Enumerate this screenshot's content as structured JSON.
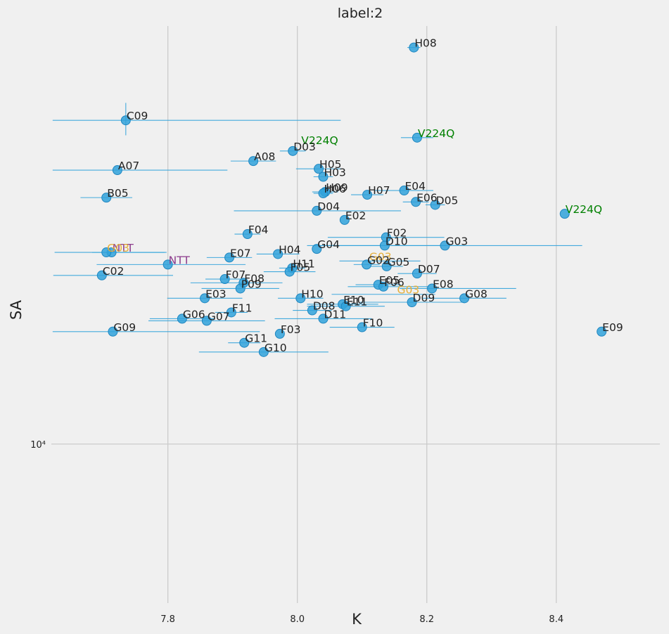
{
  "chart_data": {
    "type": "scatter",
    "title": "label:2",
    "xlabel": "K",
    "ylabel": "SA",
    "xlim": [
      7.62,
      8.56
    ],
    "ylim": [
      6030,
      37800
    ],
    "yscale": "log",
    "grid": true,
    "colors": {
      "marker": "#30a2da",
      "default_label": "#222222",
      "V224Q": "#008000",
      "G03": "#e5ae38",
      "NTT": "#8b3a8b"
    },
    "x_ticks": [
      {
        "value": 7.8,
        "label": "7.8"
      },
      {
        "value": 8.0,
        "label": "8.0"
      },
      {
        "value": 8.2,
        "label": "8.2"
      },
      {
        "value": 8.4,
        "label": "8.4"
      }
    ],
    "y_ticks": [
      {
        "value": 10000,
        "label": "10⁴"
      }
    ],
    "points": [
      {
        "label": "H08",
        "x": 8.18,
        "y": 35300,
        "xerr": 0.01
      },
      {
        "label": "C09",
        "x": 7.735,
        "y": 28000,
        "xerr": [
          0.113,
          0.332
        ],
        "yerr": [
          1300,
          1600
        ]
      },
      {
        "label": "V224Q",
        "x": 8.185,
        "y": 26500,
        "xerr": 0.025,
        "color": "V224Q"
      },
      {
        "label": "V224Q",
        "x": 8.005,
        "y": 25900,
        "xerr": 0.0,
        "color": "V224Q",
        "marker": false
      },
      {
        "label": "D03",
        "x": 7.993,
        "y": 25400,
        "xerr": 0.02
      },
      {
        "label": "A08",
        "x": 7.932,
        "y": 24600,
        "xerr": 0.035
      },
      {
        "label": "H05",
        "x": 8.033,
        "y": 24000,
        "xerr": 0.035
      },
      {
        "label": "A07",
        "x": 7.722,
        "y": 23900,
        "xerr": [
          0.1,
          0.17
        ]
      },
      {
        "label": "H03",
        "x": 8.04,
        "y": 23400,
        "xerr": 0.015
      },
      {
        "label": "E04",
        "x": 8.165,
        "y": 22400,
        "xerr": 0.045
      },
      {
        "label": "H09",
        "x": 8.043,
        "y": 22300,
        "xerr": 0.02
      },
      {
        "label": "H07",
        "x": 8.108,
        "y": 22100,
        "xerr": 0.025
      },
      {
        "label": "H06",
        "x": 8.04,
        "y": 22200,
        "xerr": 0.015
      },
      {
        "label": "B05",
        "x": 7.705,
        "y": 21900,
        "xerr": 0.04
      },
      {
        "label": "E06",
        "x": 8.183,
        "y": 21600,
        "xerr": 0.02
      },
      {
        "label": "D05",
        "x": 8.213,
        "y": 21400,
        "xerr": 0.015
      },
      {
        "label": "D04",
        "x": 8.03,
        "y": 21000,
        "xerr": [
          0.128,
          0.13
        ]
      },
      {
        "label": "V224Q",
        "x": 8.413,
        "y": 20800,
        "xerr": 0.0,
        "color": "V224Q"
      },
      {
        "label": "E02",
        "x": 8.073,
        "y": 20400,
        "xerr": 0.0
      },
      {
        "label": "F04",
        "x": 7.923,
        "y": 19500,
        "xerr": 0.02
      },
      {
        "label": "F02",
        "x": 8.137,
        "y": 19300,
        "xerr": 0.09
      },
      {
        "label": "D10",
        "x": 8.135,
        "y": 18800,
        "xerr": 0.12
      },
      {
        "label": "G03",
        "x": 8.228,
        "y": 18800,
        "xerr": [
          0.19,
          0.212
        ]
      },
      {
        "label": "G04",
        "x": 8.03,
        "y": 18600,
        "xerr": 0.0
      },
      {
        "label": "NTT",
        "x": 7.713,
        "y": 18400,
        "xerr": [
          0.03,
          0.085
        ],
        "color": "NTT"
      },
      {
        "label": "G03",
        "x": 7.705,
        "y": 18400,
        "xerr": [
          0.08,
          0.09
        ],
        "color": "G03"
      },
      {
        "label": "H04",
        "x": 7.97,
        "y": 18300,
        "xerr": 0.033
      },
      {
        "label": "E07",
        "x": 7.895,
        "y": 18100,
        "xerr": 0.035
      },
      {
        "label": "G03",
        "x": 8.11,
        "y": 17900,
        "xerr": [
          0.045,
          0.08
        ],
        "color": "G03",
        "marker": false
      },
      {
        "label": "G02",
        "x": 8.107,
        "y": 17700,
        "xerr": 0.02
      },
      {
        "label": "NTT",
        "x": 7.8,
        "y": 17700,
        "xerr": [
          0.11,
          0.12
        ],
        "color": "NTT"
      },
      {
        "label": "G05",
        "x": 8.138,
        "y": 17600,
        "xerr": 0.025
      },
      {
        "label": "H11",
        "x": 7.992,
        "y": 17500,
        "xerr": 0.02
      },
      {
        "label": "F05",
        "x": 7.988,
        "y": 17300,
        "xerr": 0.04
      },
      {
        "label": "D07",
        "x": 8.185,
        "y": 17200,
        "xerr": 0.03
      },
      {
        "label": "C02",
        "x": 7.698,
        "y": 17100,
        "xerr": [
          0.075,
          0.11
        ]
      },
      {
        "label": "F07",
        "x": 7.888,
        "y": 16900,
        "xerr": 0.03
      },
      {
        "label": "F08",
        "x": 7.917,
        "y": 16700,
        "xerr": [
          0.082,
          0.06
        ]
      },
      {
        "label": "E05",
        "x": 8.125,
        "y": 16600,
        "xerr": 0.035
      },
      {
        "label": "F06",
        "x": 8.133,
        "y": 16500,
        "xerr": [
          0.055,
          0.07
        ]
      },
      {
        "label": "P09",
        "x": 7.912,
        "y": 16400,
        "xerr": 0.06
      },
      {
        "label": "E08",
        "x": 8.208,
        "y": 16400,
        "xerr": [
          0.05,
          0.13
        ]
      },
      {
        "label": "G03",
        "x": 8.153,
        "y": 16100,
        "xerr": [
          0.1,
          0.06
        ],
        "color": "G03",
        "marker": false
      },
      {
        "label": "E03",
        "x": 7.857,
        "y": 15900,
        "xerr": 0.058
      },
      {
        "label": "G08",
        "x": 8.258,
        "y": 15900,
        "xerr": 0.065
      },
      {
        "label": "H10",
        "x": 8.005,
        "y": 15900,
        "xerr": 0.035
      },
      {
        "label": "D09",
        "x": 8.177,
        "y": 15700,
        "xerr": 0.08
      },
      {
        "label": "E10",
        "x": 8.07,
        "y": 15600,
        "xerr": 0.055
      },
      {
        "label": "E11",
        "x": 8.075,
        "y": 15500,
        "xerr": 0.06
      },
      {
        "label": "D08",
        "x": 8.023,
        "y": 15300,
        "xerr": 0.03
      },
      {
        "label": "F11",
        "x": 7.898,
        "y": 15200,
        "xerr": 0.025
      },
      {
        "label": "G06",
        "x": 7.822,
        "y": 14900,
        "xerr": [
          0.05,
          0.05
        ]
      },
      {
        "label": "D11",
        "x": 8.04,
        "y": 14900,
        "xerr": 0.075
      },
      {
        "label": "G07",
        "x": 7.86,
        "y": 14800,
        "xerr": [
          0.09,
          0.09
        ]
      },
      {
        "label": "F10",
        "x": 8.1,
        "y": 14500,
        "xerr": 0.05
      },
      {
        "label": "G09",
        "x": 7.715,
        "y": 14300,
        "xerr": [
          0.093,
          0.227
        ]
      },
      {
        "label": "E09",
        "x": 8.47,
        "y": 14300,
        "xerr": 0.0
      },
      {
        "label": "F03",
        "x": 7.973,
        "y": 14200,
        "xerr": 0.0
      },
      {
        "label": "G11",
        "x": 7.918,
        "y": 13800,
        "xerr": 0.025
      },
      {
        "label": "G10",
        "x": 7.948,
        "y": 13400,
        "xerr": [
          0.1,
          0.1
        ]
      }
    ]
  }
}
